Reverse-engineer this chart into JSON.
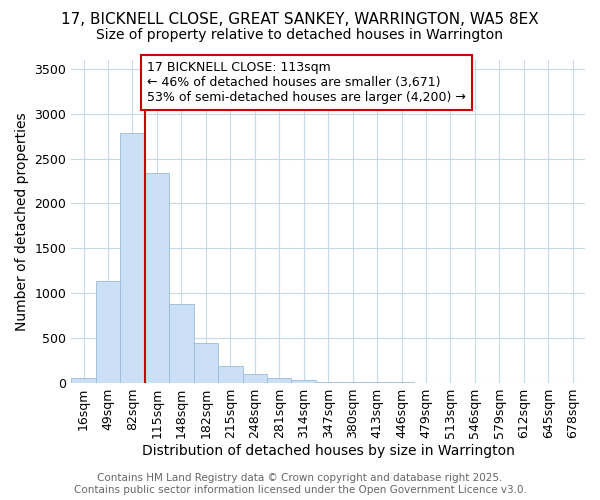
{
  "title_line1": "17, BICKNELL CLOSE, GREAT SANKEY, WARRINGTON, WA5 8EX",
  "title_line2": "Size of property relative to detached houses in Warrington",
  "xlabel": "Distribution of detached houses by size in Warrington",
  "ylabel": "Number of detached properties",
  "footer_line1": "Contains HM Land Registry data © Crown copyright and database right 2025.",
  "footer_line2": "Contains public sector information licensed under the Open Government Licence v3.0.",
  "annotation_line1": "17 BICKNELL CLOSE: 113sqm",
  "annotation_line2": "← 46% of detached houses are smaller (3,671)",
  "annotation_line3": "53% of semi-detached houses are larger (4,200) →",
  "categories": [
    "16sqm",
    "49sqm",
    "82sqm",
    "115sqm",
    "148sqm",
    "182sqm",
    "215sqm",
    "248sqm",
    "281sqm",
    "314sqm",
    "347sqm",
    "380sqm",
    "413sqm",
    "446sqm",
    "479sqm",
    "513sqm",
    "546sqm",
    "579sqm",
    "612sqm",
    "645sqm",
    "678sqm"
  ],
  "values": [
    50,
    1130,
    2780,
    2340,
    880,
    440,
    185,
    95,
    55,
    30,
    5,
    2,
    1,
    1,
    0,
    0,
    0,
    0,
    0,
    0,
    0
  ],
  "bar_color": "#cce0f5",
  "bar_edge_color": "#9bbcd8",
  "vline_color": "#cc0000",
  "vline_xindex": 2.5,
  "annotation_box_edge": "#cc0000",
  "annotation_box_face": "#ffffff",
  "ylim": [
    0,
    3600
  ],
  "yticks": [
    0,
    500,
    1000,
    1500,
    2000,
    2500,
    3000,
    3500
  ],
  "grid_color": "#c8d8e8",
  "bg_color": "#ffffff",
  "title_fontsize": 11,
  "subtitle_fontsize": 10,
  "axis_label_fontsize": 10,
  "tick_fontsize": 9,
  "annotation_fontsize": 9,
  "footer_fontsize": 7.5
}
